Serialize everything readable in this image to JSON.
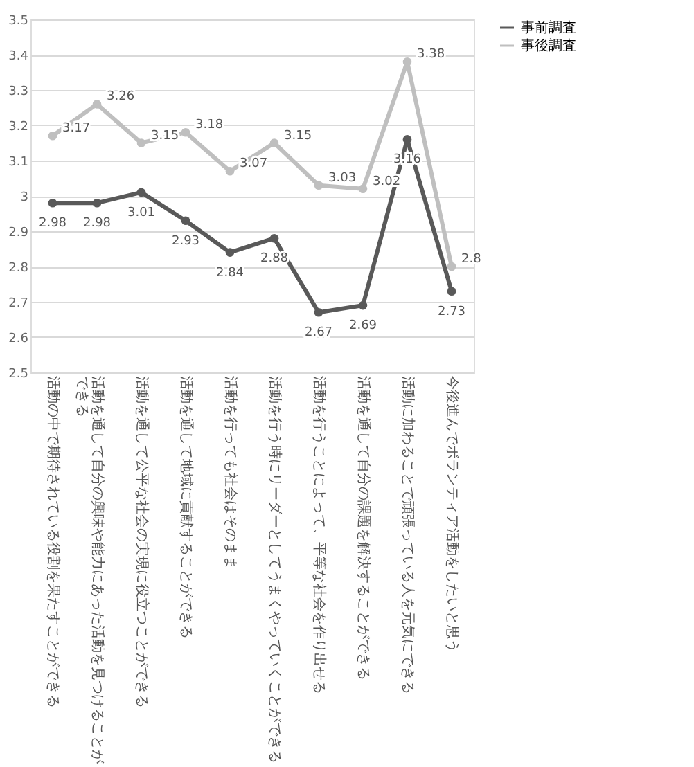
{
  "chart_data": {
    "type": "line",
    "categories": [
      "活動の中で期待されている役割を果たすことができる",
      "活動を通して自分の興味や能力にあった活動を見つけることができる",
      "活動を通して公平な社会の実現に役立つことができる",
      "活動を通して地域に貢献することができる",
      "活動を行っても社会はそのまま",
      "活動を行う時にリーダーとしてうまくやっていくことができる",
      "活動を行うことによって、平等な社会を作り出せる",
      "活動を通して自分の課題を解決することができる",
      "活動に加わることで頑張っている人を元気にできる",
      "今後進んでボランティア活動をしたいと思う"
    ],
    "series": [
      {
        "name": "事前調査",
        "color": "#595959",
        "values": [
          2.98,
          2.98,
          3.01,
          2.93,
          2.84,
          2.88,
          2.67,
          2.69,
          3.16,
          2.73
        ]
      },
      {
        "name": "事後調査",
        "color": "#bfbfbf",
        "values": [
          3.17,
          3.26,
          3.15,
          3.18,
          3.07,
          3.15,
          3.03,
          3.02,
          3.38,
          2.8
        ]
      }
    ],
    "ylim": [
      2.5,
      3.5
    ],
    "yticks": [
      2.5,
      2.6,
      2.7,
      2.8,
      2.9,
      3,
      3.1,
      3.2,
      3.3,
      3.4,
      3.5
    ],
    "grid": "y",
    "legend": "right",
    "marker": "circle",
    "line_style": "solid",
    "data_labels": true
  }
}
